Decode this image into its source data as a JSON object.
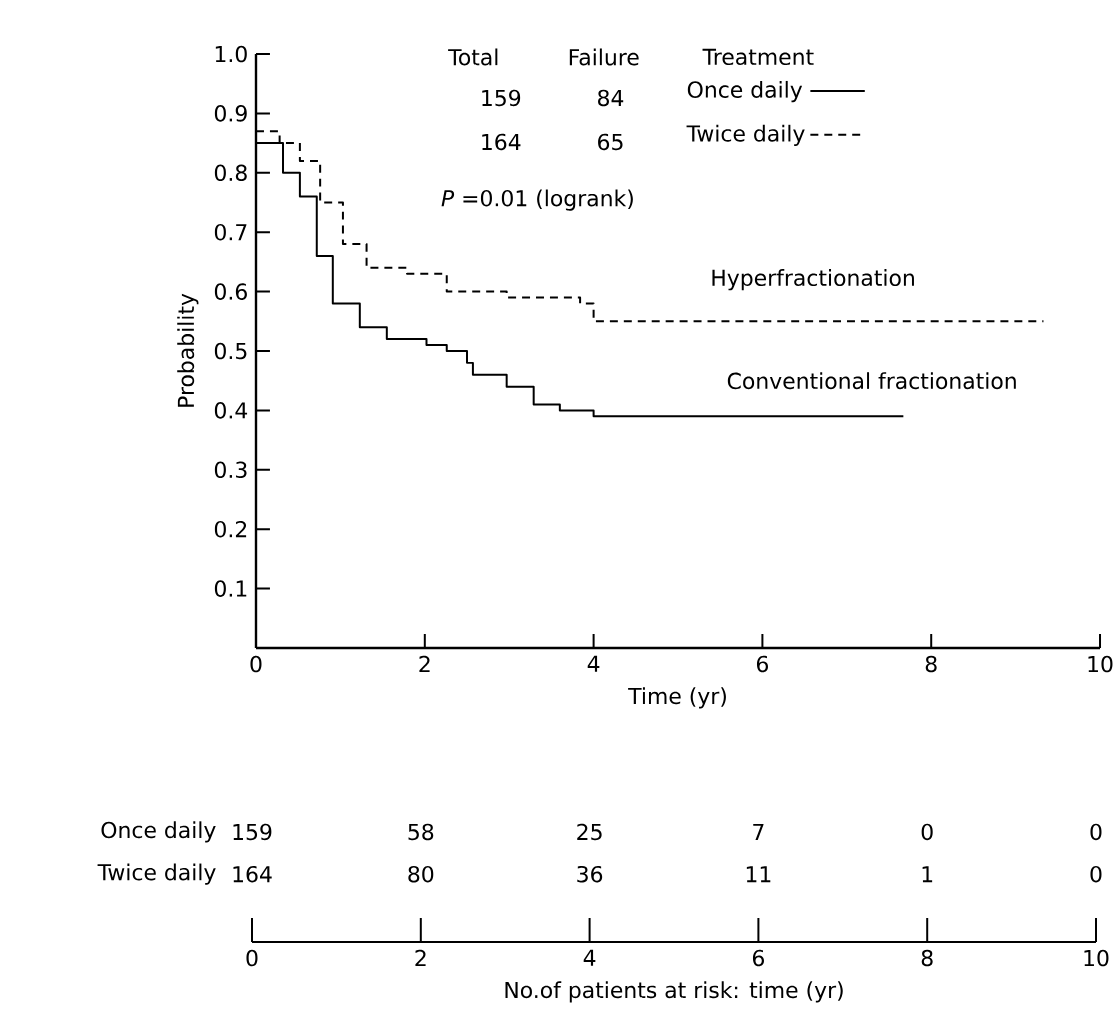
{
  "chart_data": [
    {
      "type": "step",
      "xlabel": "Time (yr)",
      "ylabel": "Probability",
      "xlim": [
        0,
        10
      ],
      "ylim": [
        0,
        1
      ],
      "xticks": [
        0,
        2,
        4,
        6,
        8,
        10
      ],
      "yticks": [
        0.1,
        0.2,
        0.3,
        0.4,
        0.5,
        0.6,
        0.7,
        0.8,
        0.9,
        {
          "value": 1,
          "label": "1.0"
        }
      ],
      "legend": "top right",
      "series": [
        {
          "name": "Once daily",
          "color": "#000000",
          "line_style": "solid",
          "x": [
            0,
            0.32,
            0.52,
            0.72,
            0.91,
            1.23,
            1.55,
            2.02,
            2.26,
            2.5,
            2.57,
            2.97,
            3.29,
            3.6,
            4.0,
            7.67
          ],
          "values": [
            0.85,
            0.8,
            0.76,
            0.66,
            0.58,
            0.54,
            0.52,
            0.51,
            0.5,
            0.48,
            0.46,
            0.44,
            0.41,
            0.4,
            0.39,
            0.39
          ]
        },
        {
          "name": "Twice daily",
          "color": "#000000",
          "line_style": "dashed",
          "x": [
            0,
            0.28,
            0.52,
            0.76,
            1.03,
            1.31,
            1.79,
            2.26,
            2.97,
            3.84,
            4.0,
            9.33
          ],
          "values": [
            0.87,
            0.85,
            0.82,
            0.75,
            0.68,
            0.64,
            0.63,
            0.6,
            0.59,
            0.58,
            0.55,
            0.55
          ]
        }
      ],
      "annotations": [
        "Total",
        "Failure",
        "Treatment",
        "159",
        "84",
        "164",
        "65",
        "*P* =0.01 (logrank)",
        "Hyperfractionation",
        "Conventional fractionation"
      ]
    },
    {
      "type": "heatmap",
      "xlabel": "No.of patients at risk: time (yr)",
      "categories": [
        "0",
        "2",
        "4",
        "6",
        "8",
        "10"
      ],
      "y_categories": [
        "Once daily",
        "Twice daily"
      ],
      "data_labels": true,
      "cells": [
        [
          159,
          58,
          25,
          7,
          0,
          0
        ],
        [
          164,
          80,
          36,
          11,
          1,
          0
        ]
      ]
    }
  ]
}
